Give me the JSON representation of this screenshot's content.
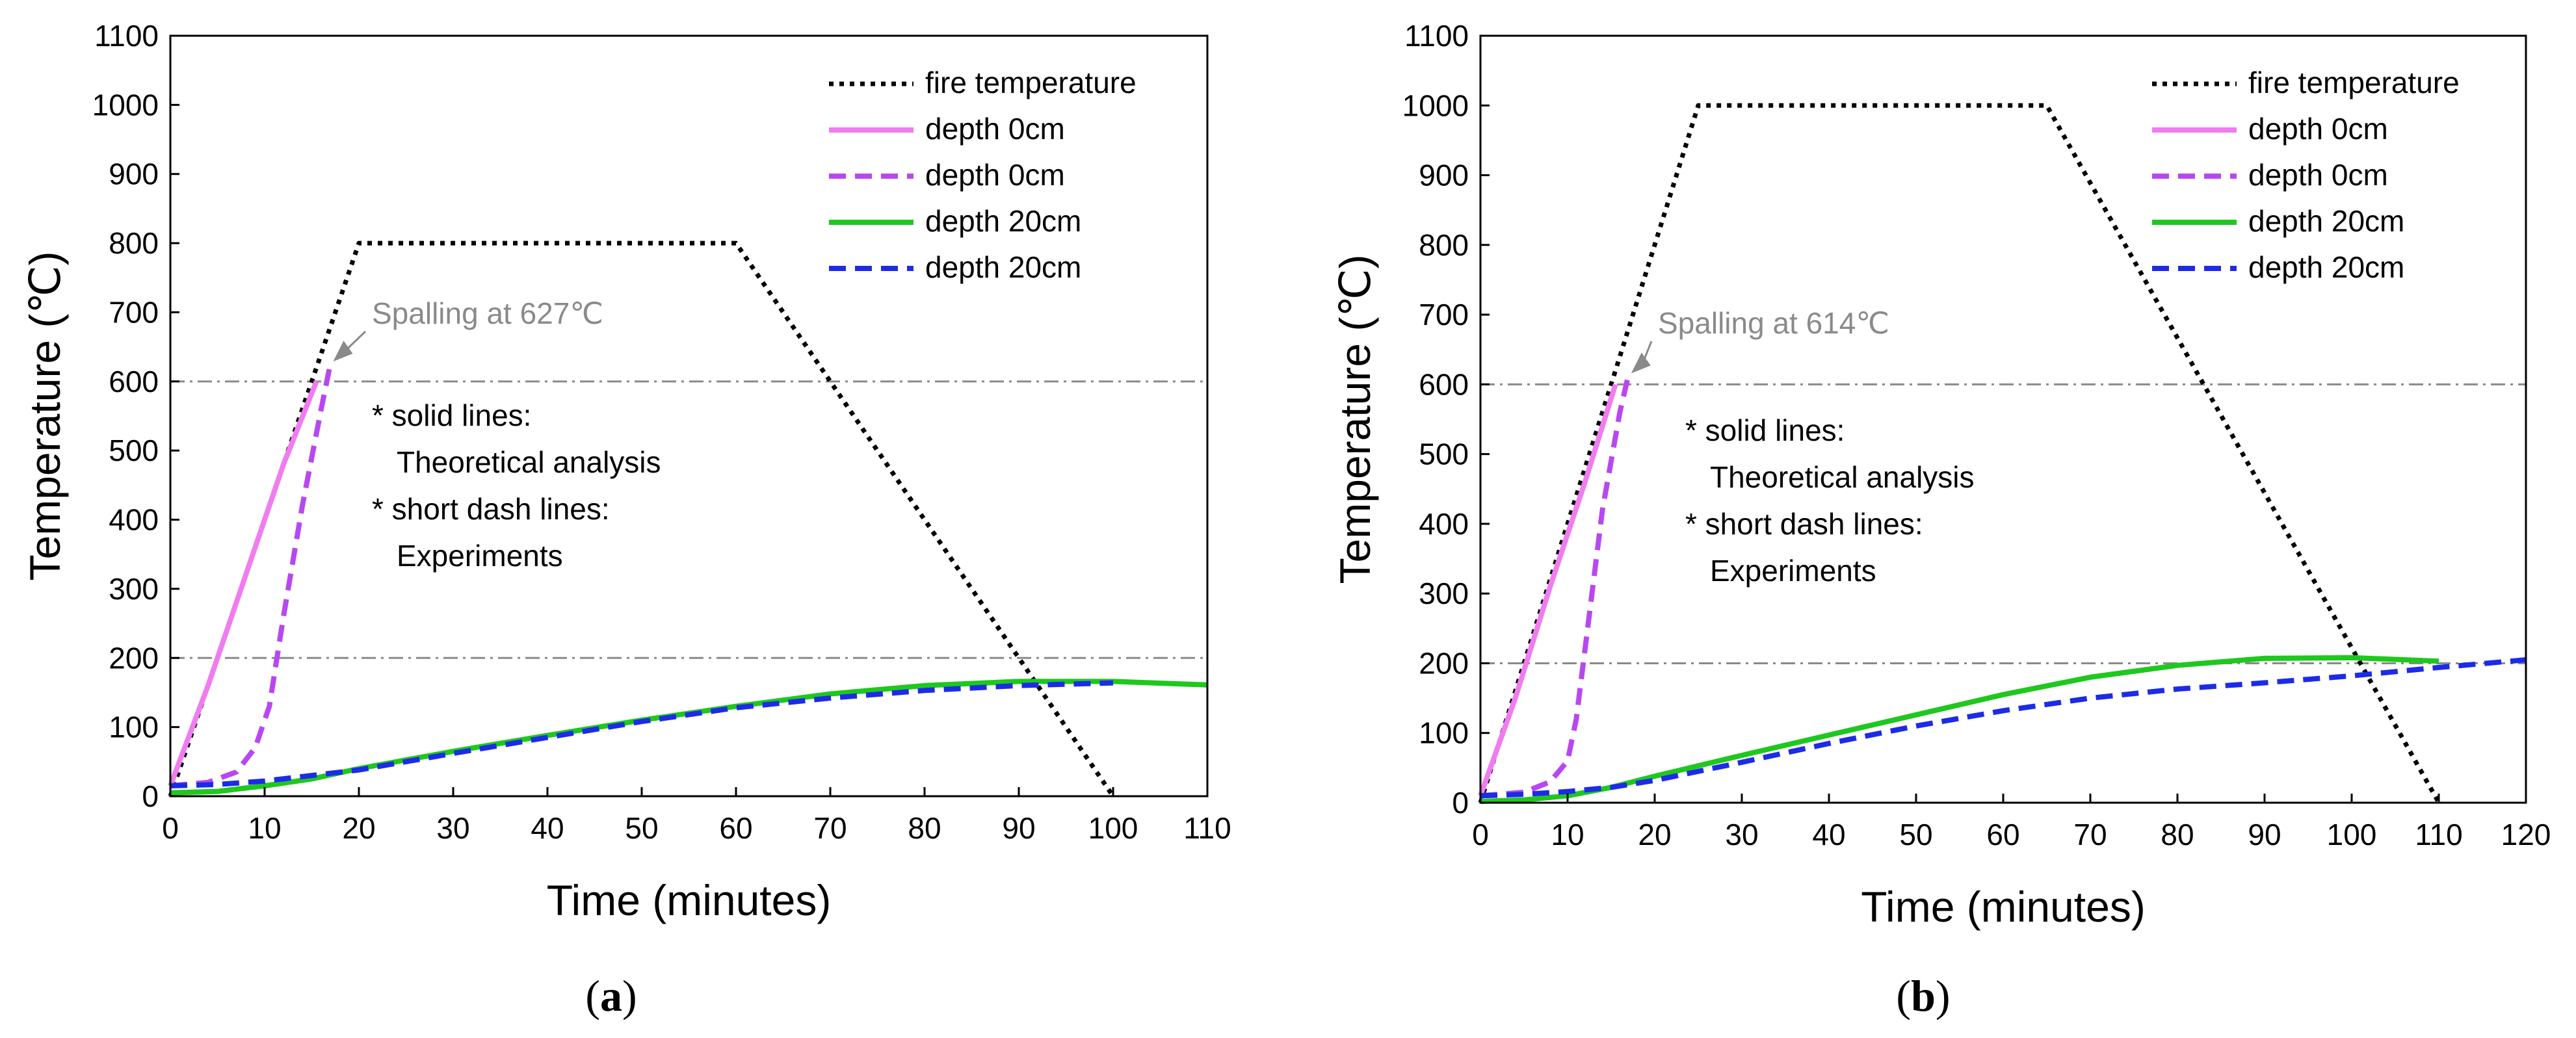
{
  "chart_data": [
    {
      "type": "line",
      "panel_label": "a",
      "xlabel": "Time (minutes)",
      "ylabel": "Temperature (℃)",
      "xlim": [
        0,
        110
      ],
      "ylim": [
        0,
        1100
      ],
      "xticks": [
        0,
        10,
        20,
        30,
        40,
        50,
        60,
        70,
        80,
        90,
        100,
        110
      ],
      "yticks": [
        0,
        100,
        200,
        300,
        400,
        500,
        600,
        700,
        800,
        900,
        1000,
        1100
      ],
      "reference_lines": [
        600,
        200
      ],
      "annotation": {
        "text": "Spalling at 627℃",
        "point": [
          17,
          627
        ]
      },
      "notes": [
        "* solid lines:",
        "Theoretical analysis",
        "* short dash lines:",
        "Experiments"
      ],
      "legend_position": "top-right",
      "series": [
        {
          "name": "fire temperature",
          "color": "#000000",
          "dash": "dot",
          "x": [
            0,
            20,
            60,
            100
          ],
          "y": [
            0,
            800,
            800,
            0
          ]
        },
        {
          "name": "depth 0cm",
          "color": "#f07cf0",
          "dash": "solid",
          "x": [
            0,
            4,
            8,
            12,
            15.5
          ],
          "y": [
            15,
            160,
            320,
            480,
            600
          ]
        },
        {
          "name": "depth 0cm",
          "color": "#b847f0",
          "dash": "dash",
          "x": [
            0,
            4,
            7,
            9,
            10.5,
            12,
            14,
            16,
            17
          ],
          "y": [
            15,
            20,
            35,
            70,
            130,
            260,
            420,
            560,
            627
          ]
        },
        {
          "name": "depth 20cm",
          "color": "#1ec81e",
          "dash": "solid",
          "x": [
            0,
            5,
            10,
            15,
            20,
            30,
            40,
            50,
            60,
            70,
            80,
            90,
            100,
            110
          ],
          "y": [
            5,
            7,
            15,
            25,
            40,
            65,
            88,
            110,
            130,
            148,
            160,
            166,
            166,
            161
          ]
        },
        {
          "name": "depth 20cm",
          "color": "#1c2be8",
          "dash": "dash",
          "x": [
            0,
            5,
            10,
            15,
            20,
            30,
            40,
            50,
            60,
            70,
            80,
            90,
            100
          ],
          "y": [
            15,
            17,
            22,
            30,
            38,
            62,
            85,
            108,
            128,
            142,
            153,
            160,
            164
          ]
        }
      ]
    },
    {
      "type": "line",
      "panel_label": "b",
      "xlabel": "Time (minutes)",
      "ylabel": "Temperature (℃)",
      "xlim": [
        0,
        120
      ],
      "ylim": [
        0,
        1100
      ],
      "xticks": [
        0,
        10,
        20,
        30,
        40,
        50,
        60,
        70,
        80,
        90,
        100,
        110,
        120
      ],
      "yticks": [
        0,
        100,
        200,
        300,
        400,
        500,
        600,
        700,
        800,
        900,
        1000,
        1100
      ],
      "reference_lines": [
        600,
        200
      ],
      "annotation": {
        "text": "Spalling at 614℃",
        "point": [
          17,
          614
        ]
      },
      "notes": [
        "* solid lines:",
        "Theoretical analysis",
        "* short dash lines:",
        "Experiments"
      ],
      "legend_position": "top-right",
      "series": [
        {
          "name": "fire temperature",
          "color": "#000000",
          "dash": "dot",
          "x": [
            0,
            25,
            65,
            110
          ],
          "y": [
            0,
            1000,
            1000,
            0
          ]
        },
        {
          "name": "depth 0cm",
          "color": "#f07cf0",
          "dash": "solid",
          "x": [
            0,
            4,
            8,
            12,
            15.5
          ],
          "y": [
            10,
            150,
            310,
            460,
            600
          ]
        },
        {
          "name": "depth 0cm",
          "color": "#b847f0",
          "dash": "dash",
          "x": [
            0,
            5,
            8,
            10,
            11,
            12.5,
            14,
            16,
            17
          ],
          "y": [
            10,
            15,
            30,
            60,
            120,
            270,
            420,
            560,
            614
          ]
        },
        {
          "name": "depth 20cm",
          "color": "#1ec81e",
          "dash": "solid",
          "x": [
            0,
            5,
            10,
            15,
            20,
            30,
            40,
            50,
            60,
            70,
            80,
            90,
            100,
            110
          ],
          "y": [
            2,
            4,
            10,
            22,
            38,
            68,
            97,
            126,
            155,
            180,
            197,
            207,
            208,
            203
          ]
        },
        {
          "name": "depth 20cm",
          "color": "#1c2be8",
          "dash": "dash",
          "x": [
            0,
            5,
            10,
            15,
            20,
            30,
            40,
            50,
            60,
            70,
            80,
            90,
            100,
            110,
            120
          ],
          "y": [
            10,
            12,
            16,
            22,
            32,
            58,
            85,
            110,
            132,
            150,
            163,
            172,
            182,
            194,
            205
          ]
        }
      ]
    }
  ]
}
